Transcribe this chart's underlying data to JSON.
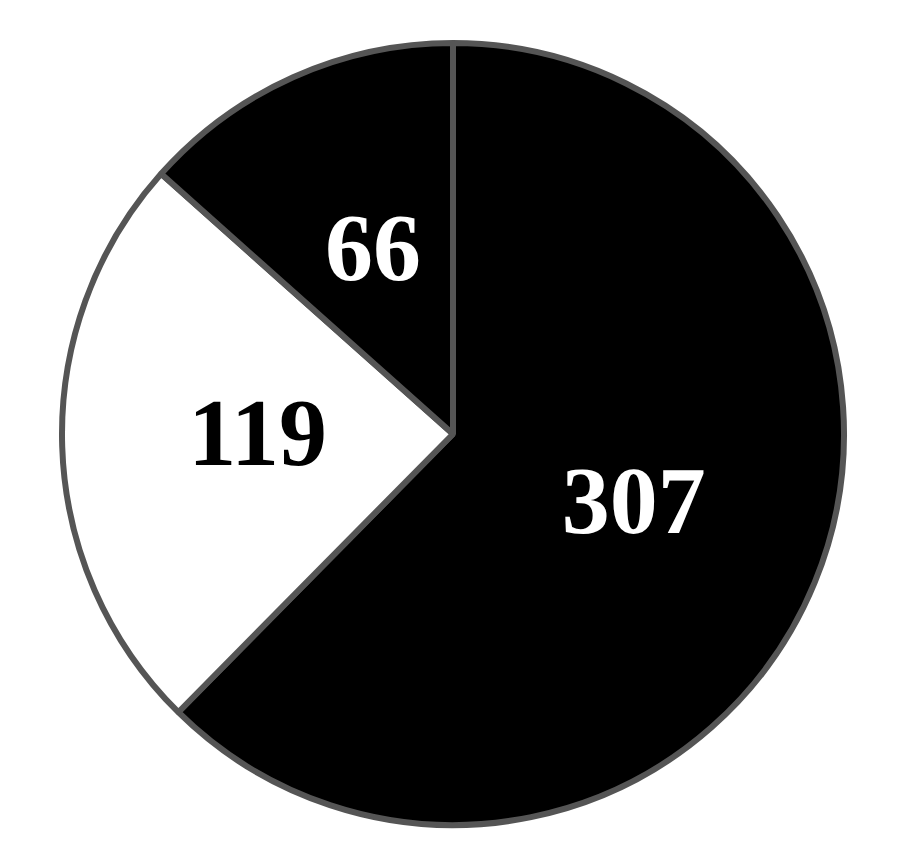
{
  "chart_data": {
    "type": "pie",
    "categories": [
      null,
      null,
      null
    ],
    "values": [
      307,
      119,
      66
    ],
    "colors": [
      "#000000",
      "#ffffff",
      "#000000"
    ],
    "data_labels": true
  }
}
